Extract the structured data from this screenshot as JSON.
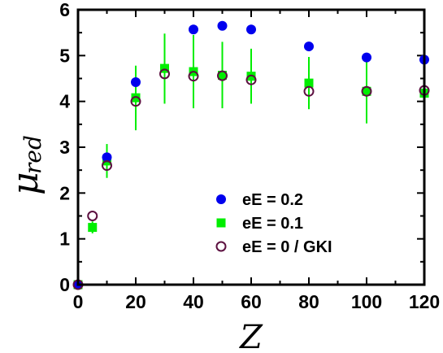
{
  "chart_data": {
    "type": "scatter",
    "xlabel": "Z",
    "ylabel_main": "μ",
    "ylabel_sub": "red",
    "xlim": [
      0,
      120
    ],
    "ylim": [
      0,
      6
    ],
    "x_ticks": [
      "0",
      "20",
      "40",
      "60",
      "80",
      "100",
      "120"
    ],
    "y_ticks": [
      "0",
      "1",
      "2",
      "3",
      "4",
      "5",
      "6"
    ],
    "legend_position": "lower-right",
    "series": [
      {
        "name": "eE = 0.2",
        "marker": "filled-circle",
        "color": "#0000ee",
        "points": [
          {
            "x": 0,
            "y": 0
          },
          {
            "x": 10,
            "y": 2.78
          },
          {
            "x": 20,
            "y": 4.42
          },
          {
            "x": 40,
            "y": 5.57
          },
          {
            "x": 50,
            "y": 5.65
          },
          {
            "x": 60,
            "y": 5.57
          },
          {
            "x": 80,
            "y": 5.2
          },
          {
            "x": 100,
            "y": 4.96
          },
          {
            "x": 120,
            "y": 4.91
          }
        ]
      },
      {
        "name": "eE = 0.1",
        "marker": "filled-square",
        "color": "#00ee00",
        "points": [
          {
            "x": 0,
            "y": 0,
            "err_low": 0,
            "err_high": 0
          },
          {
            "x": 5,
            "y": 1.25,
            "err_low": 1.12,
            "err_high": 1.38
          },
          {
            "x": 10,
            "y": 2.7,
            "err_low": 2.33,
            "err_high": 3.07
          },
          {
            "x": 20,
            "y": 4.08,
            "err_low": 3.37,
            "err_high": 4.78
          },
          {
            "x": 30,
            "y": 4.72,
            "err_low": 3.95,
            "err_high": 5.48
          },
          {
            "x": 40,
            "y": 4.65,
            "err_low": 3.85,
            "err_high": 5.45
          },
          {
            "x": 50,
            "y": 4.57,
            "err_low": 3.85,
            "err_high": 5.3
          },
          {
            "x": 60,
            "y": 4.55,
            "err_low": 3.95,
            "err_high": 5.15
          },
          {
            "x": 80,
            "y": 4.4,
            "err_low": 3.83,
            "err_high": 4.97
          },
          {
            "x": 100,
            "y": 4.22,
            "err_low": 3.52,
            "err_high": 4.92
          },
          {
            "x": 120,
            "y": 4.18,
            "err_low": 4.05,
            "err_high": 4.31
          }
        ]
      },
      {
        "name": "eE = 0 / GKI",
        "marker": "open-circle",
        "color": "#5c1040",
        "points": [
          {
            "x": 0,
            "y": 0
          },
          {
            "x": 5,
            "y": 1.5
          },
          {
            "x": 10,
            "y": 2.6
          },
          {
            "x": 20,
            "y": 4.0
          },
          {
            "x": 30,
            "y": 4.6
          },
          {
            "x": 40,
            "y": 4.55
          },
          {
            "x": 50,
            "y": 4.56
          },
          {
            "x": 60,
            "y": 4.47
          },
          {
            "x": 80,
            "y": 4.22
          },
          {
            "x": 100,
            "y": 4.22
          },
          {
            "x": 120,
            "y": 4.24
          }
        ]
      }
    ]
  }
}
